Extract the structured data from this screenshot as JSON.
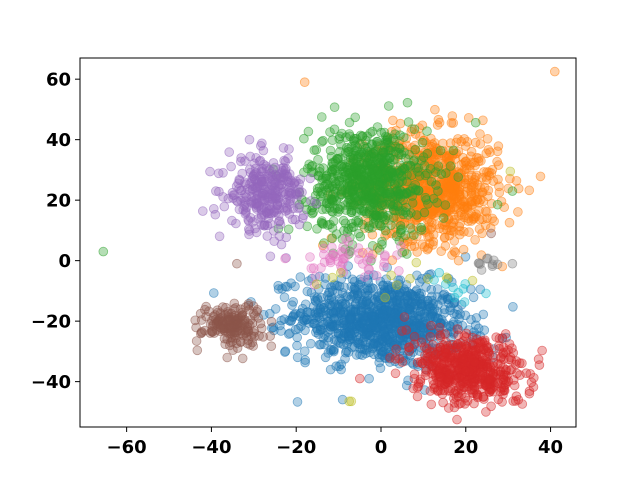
{
  "chart_data": {
    "type": "scatter",
    "title": "",
    "xlabel": "",
    "ylabel": "",
    "xlim": [
      -71,
      46
    ],
    "ylim": [
      -55,
      67
    ],
    "xticks": [
      -60,
      -40,
      -20,
      0,
      20,
      40
    ],
    "yticks": [
      -40,
      -20,
      0,
      20,
      40,
      60
    ],
    "xtick_labels": [
      "−60",
      "−40",
      "−20",
      "0",
      "20",
      "40"
    ],
    "ytick_labels": [
      "−40",
      "−20",
      "0",
      "20",
      "40",
      "60"
    ],
    "grid": false,
    "legend": "none",
    "marker_alpha": 0.35,
    "clusters": [
      {
        "color": "#1f77b4",
        "cx": 0,
        "cy": -20,
        "sx": 10,
        "sy": 7,
        "n": 1000,
        "rot": -0.15
      },
      {
        "color": "#ff7f0e",
        "cx": 12,
        "cy": 24,
        "sx": 8,
        "sy": 9,
        "n": 800,
        "rot": 0
      },
      {
        "color": "#2ca02c",
        "cx": -3,
        "cy": 26,
        "sx": 7,
        "sy": 9,
        "n": 700,
        "rot": 0
      },
      {
        "color": "#d62728",
        "cx": 20,
        "cy": -36,
        "sx": 7,
        "sy": 5,
        "n": 550,
        "rot": -0.5
      },
      {
        "color": "#9467bd",
        "cx": -27,
        "cy": 22,
        "sx": 4.5,
        "sy": 6,
        "n": 300,
        "rot": 0
      },
      {
        "color": "#8c564b",
        "cx": -35,
        "cy": -21,
        "sx": 3.5,
        "sy": 3.5,
        "n": 180,
        "rot": 0
      },
      {
        "color": "#e377c2",
        "cx": -8,
        "cy": 0,
        "sx": 6,
        "sy": 3,
        "n": 50,
        "rot": 0
      },
      {
        "color": "#7f7f7f",
        "cx": 26,
        "cy": -2,
        "sx": 3,
        "sy": 1.5,
        "n": 10,
        "rot": 0
      },
      {
        "color": "#bcbd22",
        "cx": 5,
        "cy": -5,
        "sx": 10,
        "sy": 4,
        "n": 12,
        "rot": 0
      },
      {
        "color": "#17becf",
        "cx": 18,
        "cy": -9,
        "sx": 4,
        "sy": 3,
        "n": 10,
        "rot": 0
      }
    ],
    "points": [
      {
        "x": -65.5,
        "y": 3,
        "color": "#2ca02c"
      },
      {
        "x": -18,
        "y": 59,
        "color": "#ff7f0e"
      },
      {
        "x": 41,
        "y": 62.5,
        "color": "#ff7f0e"
      },
      {
        "x": -7.5,
        "y": -46.5,
        "color": "#bcbd22"
      },
      {
        "x": -7,
        "y": -46.5,
        "color": "#bcbd22"
      },
      {
        "x": 30.5,
        "y": 29.5,
        "color": "#bcbd22"
      },
      {
        "x": 31,
        "y": 23,
        "color": "#2ca02c"
      },
      {
        "x": 27.5,
        "y": 18.5,
        "color": "#2ca02c"
      },
      {
        "x": 26,
        "y": 9,
        "color": "#8c564b"
      },
      {
        "x": 31,
        "y": -1,
        "color": "#7f7f7f"
      },
      {
        "x": -34,
        "y": -1,
        "color": "#8c564b"
      },
      {
        "x": -5,
        "y": -39,
        "color": "#d62728"
      },
      {
        "x": 35,
        "y": -44,
        "color": "#d62728"
      }
    ]
  }
}
